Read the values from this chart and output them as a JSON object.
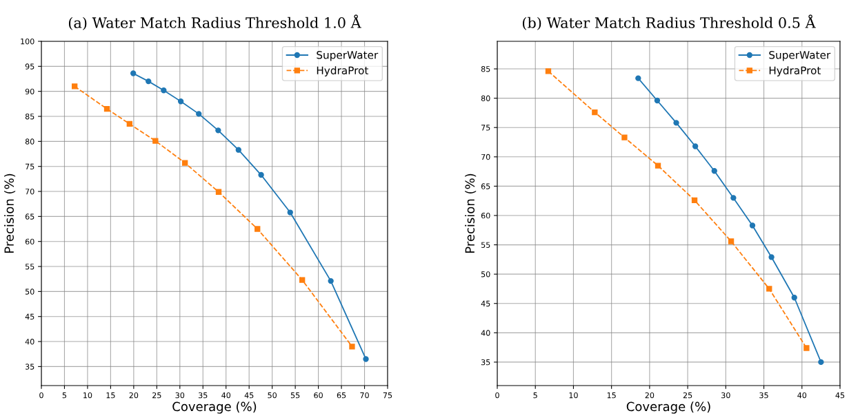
{
  "chart_data": [
    {
      "type": "line",
      "title": "(a) Water Match Radius Threshold 1.0 Å",
      "xlabel": "Coverage (%)",
      "ylabel": "Precision (%)",
      "xlim": [
        0,
        75
      ],
      "xticks": [
        0,
        5,
        10,
        15,
        20,
        25,
        30,
        35,
        40,
        45,
        50,
        55,
        60,
        65,
        70,
        75
      ],
      "ylim": [
        31.2,
        100
      ],
      "yticks": [
        35,
        40,
        45,
        50,
        55,
        60,
        65,
        70,
        75,
        80,
        85,
        90,
        95,
        100
      ],
      "grid": true,
      "legend": "top right",
      "series": [
        {
          "name": "SuperWater",
          "color": "#1f77b4",
          "marker": "circle",
          "line_style": "solid",
          "x": [
            19.9,
            23.2,
            26.5,
            30.2,
            34.1,
            38.3,
            42.7,
            47.6,
            53.9,
            62.7,
            70.3
          ],
          "values": [
            93.6,
            92.0,
            90.2,
            88.0,
            85.5,
            82.2,
            78.3,
            73.3,
            65.8,
            52.1,
            36.5
          ]
        },
        {
          "name": "HydraProt",
          "color": "#ff7f0e",
          "marker": "square",
          "line_style": "dashed",
          "x": [
            7.2,
            14.2,
            19.1,
            24.7,
            31.1,
            38.4,
            46.8,
            56.5,
            67.3
          ],
          "values": [
            91.0,
            86.5,
            83.5,
            80.1,
            75.7,
            69.9,
            62.5,
            52.3,
            39.0
          ]
        }
      ]
    },
    {
      "type": "line",
      "title": "(b) Water Match Radius Threshold 0.5 Å",
      "xlabel": "Coverage (%)",
      "ylabel": "Precision (%)",
      "xlim": [
        0,
        45
      ],
      "xticks": [
        0,
        5,
        10,
        15,
        20,
        25,
        30,
        35,
        40,
        45
      ],
      "ylim": [
        31,
        89.7
      ],
      "yticks": [
        35,
        40,
        45,
        50,
        55,
        60,
        65,
        70,
        75,
        80,
        85
      ],
      "grid": true,
      "legend": "top right",
      "series": [
        {
          "name": "SuperWater",
          "color": "#1f77b4",
          "marker": "circle",
          "line_style": "solid",
          "x": [
            18.5,
            21.0,
            23.5,
            26.0,
            28.5,
            31.0,
            33.5,
            36.0,
            39.0,
            42.5
          ],
          "values": [
            83.4,
            79.6,
            75.8,
            71.8,
            67.6,
            63.0,
            58.3,
            52.9,
            46.0,
            35.0
          ]
        },
        {
          "name": "HydraProt",
          "color": "#ff7f0e",
          "marker": "square",
          "line_style": "dashed",
          "x": [
            6.7,
            12.8,
            16.7,
            21.1,
            25.9,
            30.7,
            35.7,
            40.6
          ],
          "values": [
            84.6,
            77.6,
            73.3,
            68.5,
            62.6,
            55.6,
            47.5,
            37.4
          ]
        }
      ]
    }
  ]
}
